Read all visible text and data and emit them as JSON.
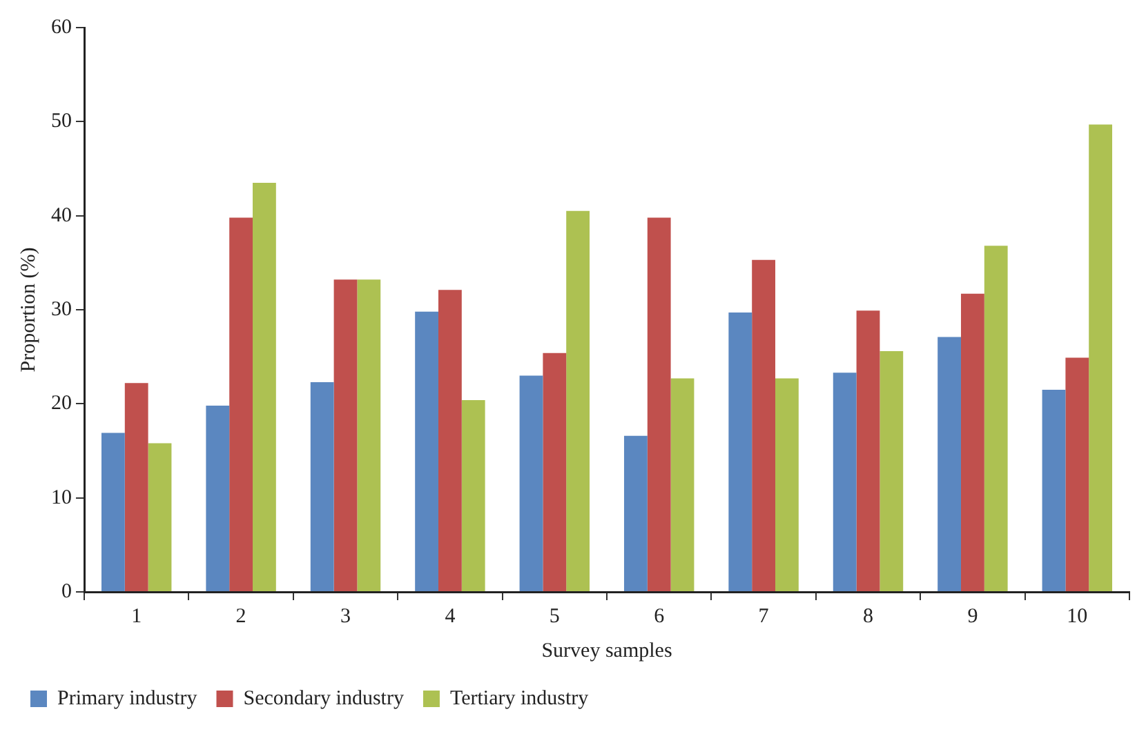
{
  "chart_data": {
    "type": "bar",
    "xlabel": "Survey samples",
    "ylabel": "Proportion (%)",
    "categories": [
      "1",
      "2",
      "3",
      "4",
      "5",
      "6",
      "7",
      "8",
      "9",
      "10"
    ],
    "series": [
      {
        "name": "Primary industry",
        "color": "#5b87c0",
        "values": [
          16.9,
          19.8,
          22.3,
          29.8,
          23.0,
          16.6,
          29.7,
          23.3,
          27.1,
          21.5
        ]
      },
      {
        "name": "Secondary industry",
        "color": "#c0504d",
        "values": [
          22.2,
          39.8,
          33.2,
          32.1,
          25.4,
          39.8,
          35.3,
          29.9,
          31.7,
          24.9
        ]
      },
      {
        "name": "Tertiary industry",
        "color": "#adc152",
        "values": [
          15.8,
          43.5,
          33.2,
          20.4,
          40.5,
          22.7,
          22.7,
          25.6,
          36.8,
          49.7
        ]
      }
    ],
    "ylim": [
      0,
      60
    ],
    "yticks": [
      0,
      10,
      20,
      30,
      40,
      50,
      60
    ],
    "grid": false,
    "legend": "bottom left"
  }
}
